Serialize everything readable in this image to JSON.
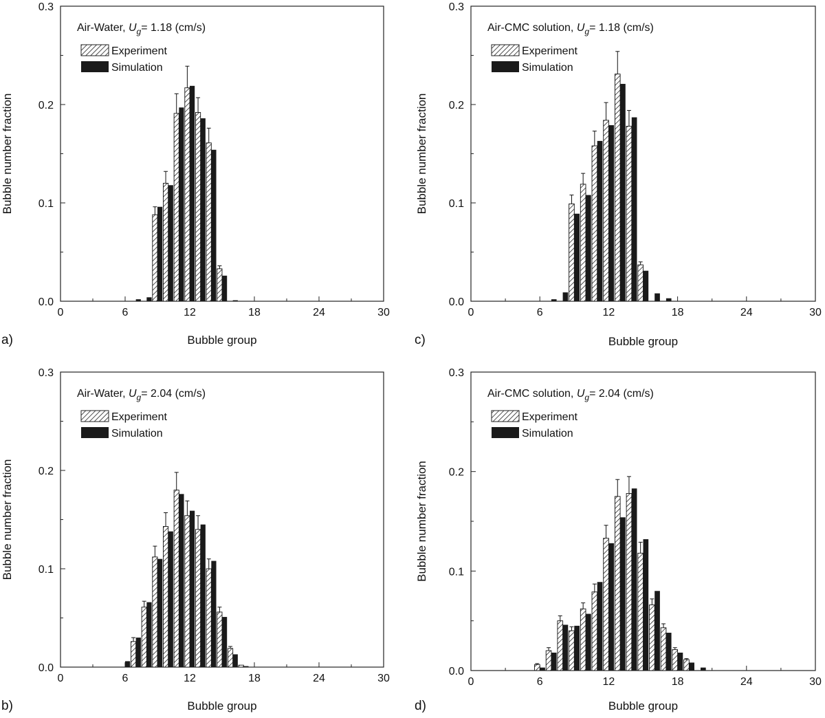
{
  "colors": {
    "simulation": "#1a1a1a",
    "experiment_hatch": "#222222",
    "axis": "#222222"
  },
  "chart_data": [
    {
      "type": "bar",
      "panel_label": "a)",
      "title": "Air-Water, U_g= 1.18 (cm/s)",
      "annotation": {
        "prefix": "Air-Water, ",
        "var": "U",
        "sub": "g",
        "suffix": "= 1.18 (cm/s)"
      },
      "xlabel": "Bubble group",
      "ylabel": "Bubble number fraction",
      "xlim": [
        0,
        30
      ],
      "ylim": [
        0,
        0.3
      ],
      "xticks": [
        0,
        6,
        12,
        18,
        24,
        30
      ],
      "yticks": [
        "0.0",
        "0.1",
        "0.2",
        "0.3"
      ],
      "legend": [
        "Experiment",
        "Simulation"
      ],
      "legend_position": "top-left",
      "groups": [
        7,
        8,
        9,
        10,
        11,
        12,
        13,
        14,
        15,
        16
      ],
      "series": [
        {
          "name": "Experiment",
          "pattern": "hatch",
          "values": [
            0,
            0,
            0.088,
            0.12,
            0.191,
            0.217,
            0.192,
            0.161,
            0.033,
            0
          ],
          "errors": [
            0,
            0,
            0.008,
            0.012,
            0.02,
            0.022,
            0.015,
            0.015,
            0.003,
            0
          ]
        },
        {
          "name": "Simulation",
          "pattern": "solid",
          "values": [
            0.002,
            0.004,
            0.096,
            0.118,
            0.197,
            0.219,
            0.186,
            0.154,
            0.026,
            0.001
          ]
        }
      ]
    },
    {
      "type": "bar",
      "panel_label": "c)",
      "title": "Air-CMC solution, U_g= 1.18 (cm/s)",
      "annotation": {
        "prefix": "Air-CMC solution, ",
        "var": "U",
        "sub": "g",
        "suffix": "= 1.18 (cm/s)"
      },
      "xlabel": "Bubble group",
      "ylabel": "Bubble number fraction",
      "xlim": [
        0,
        30
      ],
      "ylim": [
        0,
        0.3
      ],
      "xticks": [
        0,
        6,
        12,
        18,
        24,
        30
      ],
      "yticks": [
        "0.0",
        "0.1",
        "0.2",
        "0.3"
      ],
      "legend": [
        "Experiment",
        "Simulation"
      ],
      "legend_position": "top-left",
      "groups": [
        7,
        8,
        9,
        10,
        11,
        12,
        13,
        14,
        15,
        16,
        17
      ],
      "series": [
        {
          "name": "Experiment",
          "pattern": "hatch",
          "values": [
            0,
            0,
            0.099,
            0.119,
            0.158,
            0.184,
            0.231,
            0.178,
            0.037,
            0,
            0
          ],
          "errors": [
            0,
            0,
            0.009,
            0.011,
            0.015,
            0.018,
            0.023,
            0.016,
            0.003,
            0,
            0
          ]
        },
        {
          "name": "Simulation",
          "pattern": "solid",
          "values": [
            0.002,
            0.009,
            0.089,
            0.108,
            0.163,
            0.179,
            0.221,
            0.187,
            0.031,
            0.008,
            0.003
          ]
        }
      ]
    },
    {
      "type": "bar",
      "panel_label": "b)",
      "title": "Air-Water, U_g= 2.04 (cm/s)",
      "annotation": {
        "prefix": "Air-Water, ",
        "var": "U",
        "sub": "g",
        "suffix": "= 2.04 (cm/s)"
      },
      "xlabel": "Bubble group",
      "ylabel": "Bubble number fraction",
      "xlim": [
        0,
        30
      ],
      "ylim": [
        0,
        0.3
      ],
      "xticks": [
        0,
        6,
        12,
        18,
        24,
        30
      ],
      "yticks": [
        "0.0",
        "0.1",
        "0.2",
        "0.3"
      ],
      "legend": [
        "Experiment",
        "Simulation"
      ],
      "legend_position": "top-left",
      "groups": [
        6,
        7,
        8,
        9,
        10,
        11,
        12,
        13,
        14,
        15,
        16,
        17
      ],
      "series": [
        {
          "name": "Experiment",
          "pattern": "hatch",
          "values": [
            0,
            0.026,
            0.061,
            0.112,
            0.143,
            0.18,
            0.154,
            0.14,
            0.1,
            0.056,
            0.019,
            0.002
          ],
          "errors": [
            0,
            0.004,
            0.006,
            0.011,
            0.014,
            0.018,
            0.015,
            0.014,
            0.01,
            0.005,
            0.002,
            0
          ]
        },
        {
          "name": "Simulation",
          "pattern": "solid",
          "values": [
            0.006,
            0.03,
            0.066,
            0.11,
            0.138,
            0.176,
            0.159,
            0.145,
            0.108,
            0.051,
            0.013,
            0.001
          ]
        }
      ]
    },
    {
      "type": "bar",
      "panel_label": "d)",
      "title": "Air-CMC solution, U_g= 2.04 (cm/s)",
      "annotation": {
        "prefix": "Air-CMC solution, ",
        "var": "U",
        "sub": "g",
        "suffix": "= 2.04 (cm/s)"
      },
      "xlabel": "Bubble group",
      "ylabel": "Bubble number fraction",
      "xlim": [
        0,
        30
      ],
      "ylim": [
        0,
        0.3
      ],
      "xticks": [
        0,
        6,
        12,
        18,
        24,
        30
      ],
      "yticks": [
        "0.0",
        "0.1",
        "0.2",
        "0.3"
      ],
      "legend": [
        "Experiment",
        "Simulation"
      ],
      "legend_position": "top-left",
      "groups": [
        6,
        7,
        8,
        9,
        10,
        11,
        12,
        13,
        14,
        15,
        16,
        17,
        18,
        19,
        20
      ],
      "series": [
        {
          "name": "Experiment",
          "pattern": "hatch",
          "values": [
            0.006,
            0.02,
            0.05,
            0.04,
            0.062,
            0.079,
            0.133,
            0.175,
            0.178,
            0.118,
            0.066,
            0.043,
            0.021,
            0.011,
            0
          ],
          "errors": [
            0.001,
            0.003,
            0.005,
            0.004,
            0.006,
            0.008,
            0.013,
            0.017,
            0.017,
            0.011,
            0.006,
            0.004,
            0.002,
            0.001,
            0
          ]
        },
        {
          "name": "Simulation",
          "pattern": "solid",
          "values": [
            0.003,
            0.018,
            0.046,
            0.045,
            0.057,
            0.089,
            0.128,
            0.154,
            0.183,
            0.132,
            0.08,
            0.038,
            0.018,
            0.008,
            0.003
          ]
        }
      ]
    }
  ]
}
